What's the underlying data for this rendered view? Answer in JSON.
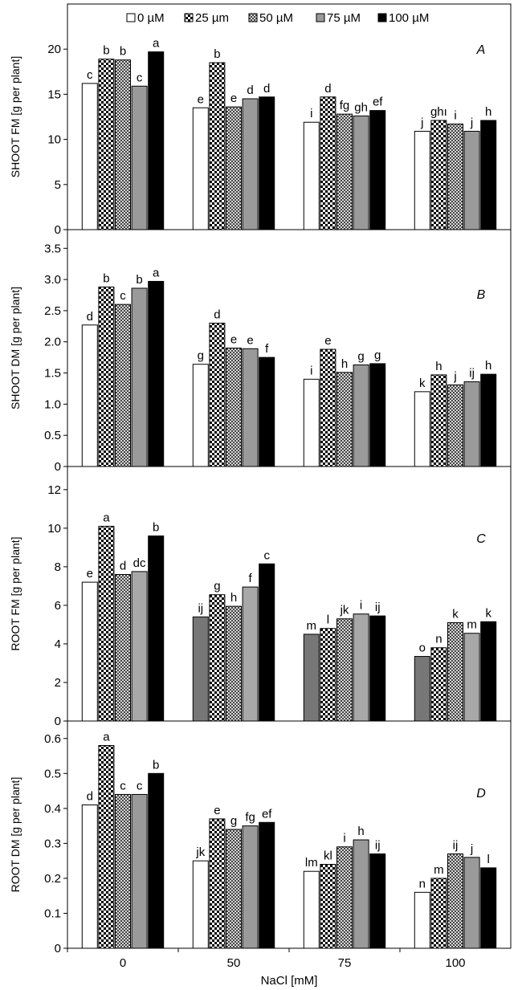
{
  "legend": {
    "items": [
      {
        "label": "0 µM",
        "pattern": "white"
      },
      {
        "label": "25 µm",
        "pattern": "checker"
      },
      {
        "label": "50 µM",
        "pattern": "dots"
      },
      {
        "label": "75 µM",
        "pattern": "gray"
      },
      {
        "label": "100 µM",
        "pattern": "black"
      }
    ]
  },
  "x_axis": {
    "label": "NaCl [mM]",
    "categories": [
      "0",
      "50",
      "75",
      "100"
    ]
  },
  "colors": {
    "white": "#ffffff",
    "gray": "#9a9a9a",
    "black": "#000000",
    "checkerDark": "#000000",
    "dots": "#555555",
    "rootGrayDark": "#777777",
    "rootGrayLight": "#a8a8a8"
  },
  "chart_data": [
    {
      "type": "bar",
      "panel_label": "A",
      "ylabel": "SHOOT FM [g per plant]",
      "ylim": [
        0,
        25
      ],
      "yticks": [
        "0",
        "5",
        "10",
        "15",
        "20"
      ],
      "ytick_values": [
        0,
        5,
        10,
        15,
        20
      ],
      "categories": [
        "0",
        "50",
        "75",
        "100"
      ],
      "series": [
        {
          "name": "0 µM",
          "pattern": "white",
          "values": [
            16.2,
            13.5,
            11.9,
            10.9
          ],
          "letters": [
            "c",
            "e",
            "i",
            "j"
          ]
        },
        {
          "name": "25 µm",
          "pattern": "checker",
          "values": [
            18.9,
            18.5,
            14.7,
            12.1
          ],
          "letters": [
            "b",
            "b",
            "d",
            "ghı"
          ]
        },
        {
          "name": "50 µM",
          "pattern": "dots",
          "values": [
            18.8,
            13.6,
            12.8,
            11.7
          ],
          "letters": [
            "b",
            "e",
            "fg",
            "i"
          ]
        },
        {
          "name": "75 µM",
          "pattern": "gray",
          "values": [
            15.9,
            14.5,
            12.6,
            10.9
          ],
          "letters": [
            "c",
            "d",
            "gh",
            "j"
          ]
        },
        {
          "name": "100 µM",
          "pattern": "black",
          "values": [
            19.7,
            14.7,
            13.2,
            12.1
          ],
          "letters": [
            "a",
            "d",
            "ef",
            "h"
          ]
        }
      ]
    },
    {
      "type": "bar",
      "panel_label": "B",
      "ylabel": "SHOOT DM [g per plant]",
      "ylim": [
        0,
        3.8
      ],
      "yticks": [
        "0",
        "0.5",
        "1.0",
        "1.5",
        "2.0",
        "2.5",
        "3.0",
        "3.5"
      ],
      "ytick_values": [
        0,
        0.5,
        1.0,
        1.5,
        2.0,
        2.5,
        3.0,
        3.5
      ],
      "categories": [
        "0",
        "50",
        "75",
        "100"
      ],
      "series": [
        {
          "name": "0 µM",
          "pattern": "white",
          "values": [
            2.27,
            1.64,
            1.4,
            1.2
          ],
          "letters": [
            "d",
            "g",
            "i",
            "k"
          ]
        },
        {
          "name": "25 µm",
          "pattern": "checker",
          "values": [
            2.88,
            2.3,
            1.88,
            1.47
          ],
          "letters": [
            "b",
            "d",
            "e",
            "h"
          ]
        },
        {
          "name": "50 µM",
          "pattern": "dots",
          "values": [
            2.6,
            1.9,
            1.51,
            1.31
          ],
          "letters": [
            "c",
            "e",
            "h",
            "j"
          ]
        },
        {
          "name": "75 µM",
          "pattern": "gray",
          "values": [
            2.86,
            1.89,
            1.63,
            1.36
          ],
          "letters": [
            "b",
            "e",
            "g",
            "ij"
          ]
        },
        {
          "name": "100 µM",
          "pattern": "black",
          "values": [
            2.97,
            1.75,
            1.65,
            1.48
          ],
          "letters": [
            "a",
            "f",
            "g",
            "h"
          ]
        }
      ]
    },
    {
      "type": "bar",
      "panel_label": "C",
      "ylabel": "ROOT FM [g per plant]",
      "ylim": [
        0,
        13.2
      ],
      "yticks": [
        "0",
        "2",
        "4",
        "6",
        "8",
        "10",
        "12"
      ],
      "ytick_values": [
        0,
        2,
        4,
        6,
        8,
        10,
        12
      ],
      "categories": [
        "0",
        "50",
        "75",
        "100"
      ],
      "series": [
        {
          "name": "0 µM",
          "pattern": "white",
          "patterns": [
            "white",
            "gray-dark",
            "gray-dark",
            "gray-dark"
          ],
          "values": [
            7.2,
            5.4,
            4.5,
            3.35
          ],
          "letters": [
            "e",
            "ij",
            "m",
            "o"
          ]
        },
        {
          "name": "25 µm",
          "pattern": "checker",
          "values": [
            10.1,
            6.55,
            4.8,
            3.8
          ],
          "letters": [
            "a",
            "g",
            "l",
            "n"
          ]
        },
        {
          "name": "50 µM",
          "pattern": "dots",
          "values": [
            7.6,
            5.95,
            5.3,
            5.1
          ],
          "letters": [
            "d",
            "h",
            "jk",
            "k"
          ]
        },
        {
          "name": "75 µM",
          "pattern": "gray-light",
          "values": [
            7.75,
            6.95,
            5.55,
            4.55
          ],
          "letters": [
            "dc",
            "f",
            "i",
            "m"
          ]
        },
        {
          "name": "100 µM",
          "pattern": "black",
          "values": [
            9.6,
            8.15,
            5.45,
            5.15
          ],
          "letters": [
            "b",
            "c",
            "ij",
            "k"
          ]
        }
      ]
    },
    {
      "type": "bar",
      "panel_label": "D",
      "ylabel": "ROOT DM [g per plant]",
      "ylim": [
        0,
        0.65
      ],
      "yticks": [
        "0",
        "0.1",
        "0.2",
        "0.3",
        "0.4",
        "0.5",
        "0.6"
      ],
      "ytick_values": [
        0,
        0.1,
        0.2,
        0.3,
        0.4,
        0.5,
        0.6
      ],
      "categories": [
        "0",
        "50",
        "75",
        "100"
      ],
      "series": [
        {
          "name": "0 µM",
          "pattern": "white",
          "values": [
            0.41,
            0.25,
            0.22,
            0.16
          ],
          "letters": [
            "d",
            "jk",
            "lm",
            "n"
          ]
        },
        {
          "name": "25 µm",
          "pattern": "checker",
          "values": [
            0.58,
            0.37,
            0.24,
            0.2
          ],
          "letters": [
            "a",
            "e",
            "kl",
            "m"
          ]
        },
        {
          "name": "50 µM",
          "pattern": "dots",
          "values": [
            0.44,
            0.34,
            0.29,
            0.27
          ],
          "letters": [
            "c",
            "g",
            "i",
            "ij"
          ]
        },
        {
          "name": "75 µM",
          "pattern": "gray",
          "values": [
            0.44,
            0.35,
            0.31,
            0.26
          ],
          "letters": [
            "c",
            "fg",
            "h",
            "j"
          ]
        },
        {
          "name": "100 µM",
          "pattern": "black",
          "values": [
            0.5,
            0.36,
            0.27,
            0.23
          ],
          "letters": [
            "b",
            "ef",
            "ij",
            "l"
          ]
        }
      ]
    }
  ]
}
